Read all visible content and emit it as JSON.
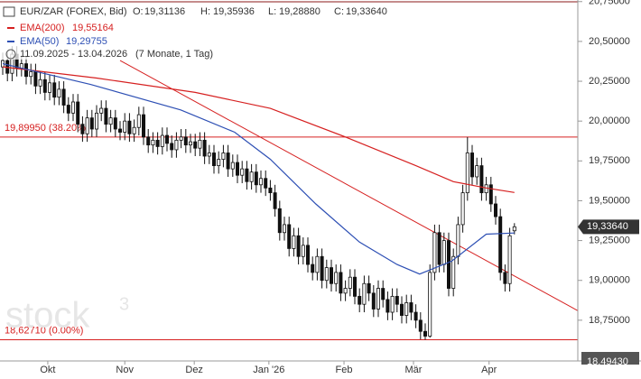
{
  "header": {
    "instrument": "EUR/ZAR (FOREX, Bid)",
    "ohlc": [
      {
        "key": "O:",
        "value": 19.31136,
        "label": "19,31136"
      },
      {
        "key": "H:",
        "value": 19.35936,
        "label": "19,35936"
      },
      {
        "key": "L:",
        "value": 19.2888,
        "label": "19,28880"
      },
      {
        "key": "C:",
        "value": 19.3364,
        "label": "19,33640"
      }
    ],
    "range": "11.09.2025 - 13.04.2026",
    "range_note": "(7 Monate, 1 Tag)"
  },
  "chart_data": {
    "type": "candlestick",
    "xlim": [
      -0.58,
      122.5
    ],
    "xticks": [
      {
        "value": 9.6,
        "label": "Okt"
      },
      {
        "value": 26,
        "label": "Nov"
      },
      {
        "value": 40.8,
        "label": "Dez"
      },
      {
        "value": 56.7,
        "label": "Jan '26"
      },
      {
        "value": 72.7,
        "label": "Feb"
      },
      {
        "value": 87.5,
        "label": "Mär"
      },
      {
        "value": 103.6,
        "label": "Apr"
      }
    ],
    "ylim": [
      18.4943,
      20.76
    ],
    "axis_min_label": {
      "value": 18.4943,
      "label": "18,49430"
    },
    "yticks": [
      {
        "value": 20.75,
        "label": "20,75000"
      },
      {
        "value": 20.5,
        "label": "20,50000"
      },
      {
        "value": 20.25,
        "label": "20,25000"
      },
      {
        "value": 20,
        "label": "20,00000"
      },
      {
        "value": 19.75,
        "label": "19,75000"
      },
      {
        "value": 19.5,
        "label": "19,50000"
      },
      {
        "value": 19.25,
        "label": "19,25000"
      },
      {
        "value": 19,
        "label": "19,00000"
      },
      {
        "value": 18.75,
        "label": "18,75000"
      }
    ],
    "last_price": {
      "value": 19.3364,
      "label": "19,33640"
    },
    "candles": {
      "open": [
        20.34,
        20.38,
        20.3,
        20.42,
        20.33,
        20.36,
        20.28,
        20.31,
        20.22,
        20.26,
        20.18,
        20.24,
        20.15,
        20.2,
        20.1,
        20.05,
        20.12,
        19.98,
        19.92,
        20.02,
        19.95,
        20.05,
        20.08,
        19.98,
        20.02,
        19.95,
        19.93,
        20.0,
        19.92,
        19.96,
        20.04,
        19.9,
        19.85,
        19.88,
        19.84,
        19.91,
        19.86,
        19.82,
        19.88,
        19.9,
        19.85,
        19.87,
        19.83,
        19.88,
        19.78,
        19.8,
        19.72,
        19.76,
        19.8,
        19.7,
        19.74,
        19.66,
        19.7,
        19.62,
        19.68,
        19.6,
        19.64,
        19.58,
        19.55,
        19.45,
        19.3,
        19.35,
        19.2,
        19.28,
        19.15,
        19.22,
        19.1,
        19.05,
        19.15,
        19.0,
        19.08,
        18.98,
        19.05,
        18.92,
        18.95,
        19.02,
        18.9,
        18.85,
        18.98,
        18.92,
        18.82,
        18.95,
        18.88,
        18.8,
        18.9,
        18.85,
        18.78,
        18.86,
        18.8,
        18.75,
        18.68,
        18.65,
        19.05,
        19.3,
        19.1,
        19.25,
        18.95,
        19.15,
        19.35,
        19.55,
        19.8,
        19.65,
        19.72,
        19.55,
        19.6,
        19.48,
        19.4,
        19.05,
        18.98,
        19.31136
      ],
      "high": [
        20.43,
        20.43,
        20.47,
        20.47,
        20.41,
        20.41,
        20.36,
        20.36,
        20.31,
        20.31,
        20.29,
        20.29,
        20.25,
        20.25,
        20.15,
        20.17,
        20.17,
        20.03,
        20.07,
        20.07,
        20.1,
        20.13,
        20.13,
        20.07,
        20.07,
        20.0,
        20.05,
        20.05,
        20.01,
        20.09,
        20.09,
        19.95,
        19.93,
        19.93,
        19.96,
        19.96,
        19.91,
        19.93,
        19.95,
        19.95,
        19.92,
        19.92,
        19.93,
        19.93,
        19.85,
        19.85,
        19.81,
        19.85,
        19.85,
        19.79,
        19.79,
        19.75,
        19.75,
        19.73,
        19.73,
        19.69,
        19.69,
        19.63,
        19.6,
        19.5,
        19.4,
        19.4,
        19.33,
        19.33,
        19.27,
        19.27,
        19.15,
        19.2,
        19.2,
        19.13,
        19.13,
        19.1,
        19.1,
        19.0,
        19.07,
        19.07,
        18.95,
        19.03,
        19.03,
        18.97,
        19.0,
        19.0,
        18.93,
        18.95,
        18.95,
        18.9,
        18.91,
        18.91,
        18.85,
        18.8,
        18.73,
        19.1,
        19.35,
        19.35,
        19.3,
        19.3,
        19.2,
        19.4,
        19.6,
        19.8995,
        19.85,
        19.77,
        19.77,
        19.65,
        19.65,
        19.53,
        19.45,
        19.1,
        19.33,
        19.35936
      ],
      "low": [
        20.29,
        20.25,
        20.25,
        20.28,
        20.28,
        20.23,
        20.23,
        20.17,
        20.17,
        20.13,
        20.13,
        20.1,
        20.1,
        20.05,
        20.0,
        20.0,
        19.93,
        19.87,
        19.87,
        19.9,
        19.9,
        20.0,
        19.93,
        19.93,
        19.9,
        19.88,
        19.88,
        19.87,
        19.87,
        19.91,
        19.85,
        19.8,
        19.8,
        19.79,
        19.79,
        19.81,
        19.77,
        19.77,
        19.83,
        19.8,
        19.8,
        19.78,
        19.78,
        19.73,
        19.73,
        19.67,
        19.67,
        19.71,
        19.65,
        19.65,
        19.61,
        19.61,
        19.57,
        19.57,
        19.55,
        19.55,
        19.53,
        19.5,
        19.4,
        19.25,
        19.25,
        19.15,
        19.15,
        19.1,
        19.1,
        19.05,
        19.0,
        19.0,
        18.95,
        18.95,
        18.93,
        18.93,
        18.87,
        18.87,
        18.9,
        18.85,
        18.8,
        18.8,
        18.87,
        18.77,
        18.77,
        18.83,
        18.75,
        18.75,
        18.8,
        18.73,
        18.73,
        18.75,
        18.7,
        18.63,
        18.6271,
        18.64,
        19.0,
        19.05,
        19.05,
        18.9,
        18.9,
        19.1,
        19.3,
        19.5,
        19.6,
        19.6,
        19.5,
        19.5,
        19.43,
        19.35,
        19.0,
        18.93,
        18.93,
        19.2888
      ],
      "close": [
        20.38,
        20.3,
        20.42,
        20.33,
        20.36,
        20.28,
        20.31,
        20.22,
        20.26,
        20.18,
        20.24,
        20.15,
        20.2,
        20.1,
        20.05,
        20.12,
        19.98,
        19.92,
        20.02,
        19.95,
        20.05,
        20.08,
        19.98,
        20.02,
        19.95,
        19.93,
        20.0,
        19.92,
        19.96,
        20.04,
        19.9,
        19.85,
        19.88,
        19.84,
        19.91,
        19.86,
        19.82,
        19.88,
        19.9,
        19.85,
        19.87,
        19.83,
        19.88,
        19.78,
        19.8,
        19.72,
        19.76,
        19.8,
        19.7,
        19.74,
        19.66,
        19.7,
        19.62,
        19.68,
        19.6,
        19.64,
        19.58,
        19.55,
        19.45,
        19.3,
        19.35,
        19.2,
        19.28,
        19.15,
        19.22,
        19.1,
        19.05,
        19.15,
        19.0,
        19.08,
        18.98,
        19.05,
        18.92,
        18.95,
        19.02,
        18.9,
        18.85,
        18.98,
        18.92,
        18.82,
        18.95,
        18.88,
        18.8,
        18.9,
        18.85,
        18.78,
        18.86,
        18.8,
        18.75,
        18.68,
        18.65,
        19.05,
        19.3,
        19.1,
        19.25,
        18.95,
        19.15,
        19.35,
        19.55,
        19.8,
        19.65,
        19.72,
        19.55,
        19.6,
        19.48,
        19.4,
        19.05,
        18.98,
        19.28,
        19.3364
      ]
    },
    "series": [
      {
        "name": "EMA(200)",
        "color": "#d62020",
        "last": {
          "value": 19.55164,
          "label": "19,55164"
        },
        "x": [
          0,
          20,
          41,
          57,
          73,
          88,
          96,
          103,
          109
        ],
        "values": [
          20.34,
          20.27,
          20.18,
          20.08,
          19.9,
          19.72,
          19.62,
          19.58,
          19.55164
        ]
      },
      {
        "name": "EMA(50)",
        "color": "#2d4fb4",
        "last": {
          "value": 19.29755,
          "label": "19,29755"
        },
        "x": [
          0,
          18.7,
          37.9,
          49.4,
          57,
          66.7,
          76,
          84,
          88.8,
          95.6,
          103,
          109
        ],
        "values": [
          20.36,
          20.23,
          20.07,
          19.93,
          19.76,
          19.48,
          19.24,
          19.1,
          19.04,
          19.12,
          19.29,
          19.29755
        ]
      }
    ],
    "trendline": {
      "color": "#d62020",
      "x": [
        25,
        122.5
      ],
      "values": [
        20.38,
        18.81
      ]
    },
    "levels": [
      {
        "value": 19.8995,
        "label": "19,89950 (38.20%)"
      },
      {
        "value": 18.6271,
        "label": "18,62710 (0.00%)"
      }
    ],
    "level_color": "#d62020",
    "up_color": "#ffffff",
    "down_color": "#111111",
    "watermark": "stock",
    "watermark_sup": "3"
  }
}
